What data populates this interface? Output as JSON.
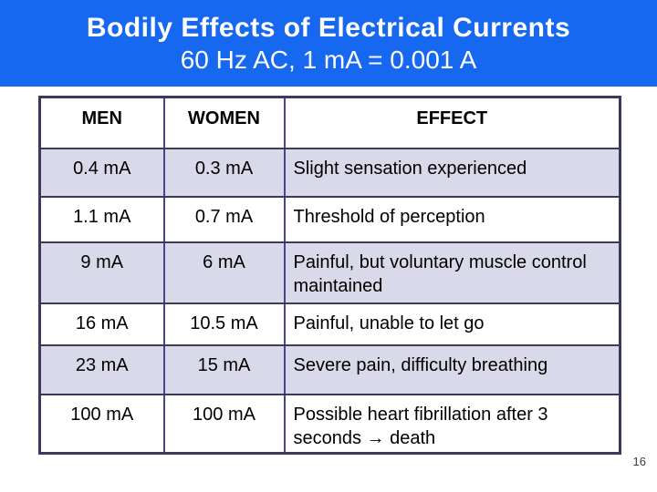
{
  "slide": {
    "title": "Bodily Effects of Electrical Currents",
    "subtitle": "60 Hz AC, 1 mA = 0.001 A",
    "page_number": "16"
  },
  "colors": {
    "banner_bg": "#1568ef",
    "banner_text": "#ffffff",
    "table_border": "#3a3a5f",
    "column_divider": "#45458c",
    "row_alt_bg": "#d9d9e9",
    "page_number_color": "#3c3c3c"
  },
  "table": {
    "headers": [
      "MEN",
      "WOMEN",
      "EFFECT"
    ],
    "rows": [
      {
        "men": "0.4 mA",
        "women": "0.3 mA",
        "effect": "Slight sensation experienced"
      },
      {
        "men": "1.1 mA",
        "women": "0.7 mA",
        "effect": "Threshold of perception"
      },
      {
        "men": "9 mA",
        "women": "6 mA",
        "effect": "Painful, but voluntary muscle control maintained"
      },
      {
        "men": "16 mA",
        "women": "10.5 mA",
        "effect": "Painful, unable to let go"
      },
      {
        "men": "23 mA",
        "women": "15 mA",
        "effect": "Severe pain, difficulty breathing"
      },
      {
        "men": "100 mA",
        "women": "100 mA",
        "effect": "Possible heart fibrillation after 3 seconds → death"
      }
    ]
  }
}
